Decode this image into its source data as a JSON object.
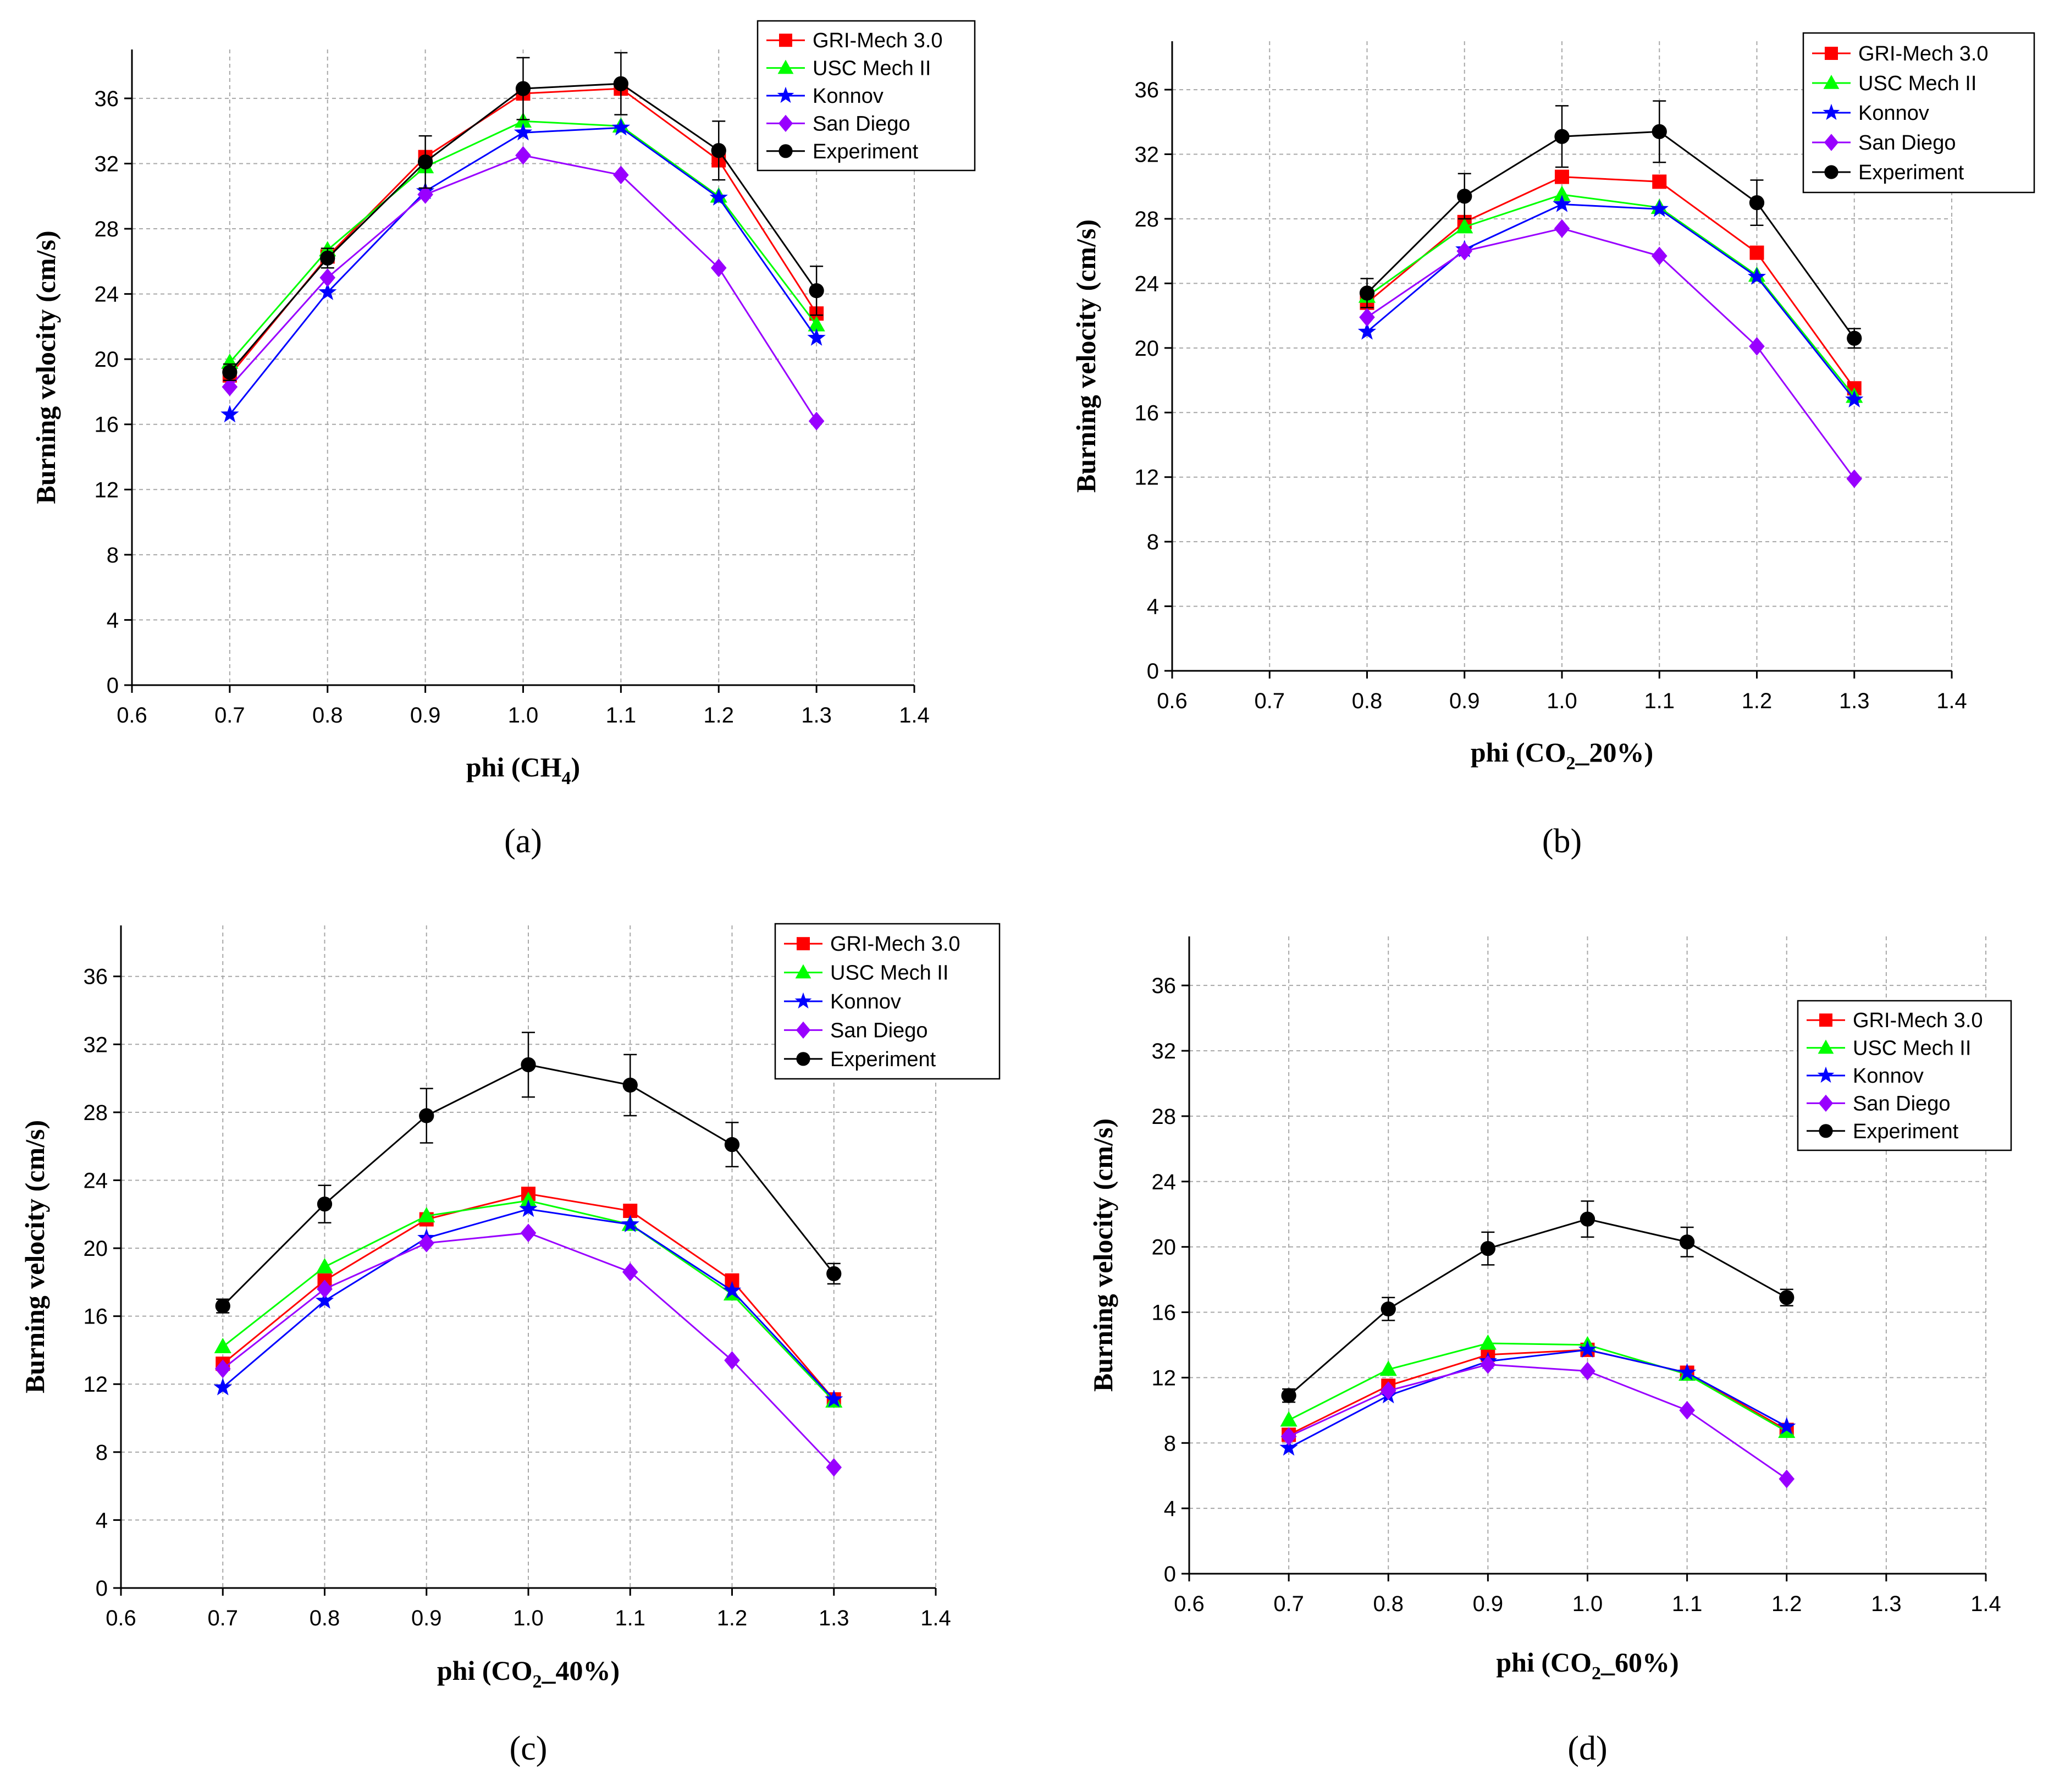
{
  "chart_data": [
    {
      "type": "line",
      "panel_label": "(a)",
      "xlabel_main": "phi (CH",
      "xlabel_sub": "4",
      "xlabel_end": ")",
      "ylabel": "Burning velocity (cm/s)",
      "xlim": [
        0.6,
        1.4
      ],
      "ylim": [
        0,
        39
      ],
      "xticks": [
        "0.6",
        "0.7",
        "0.8",
        "0.9",
        "1.0",
        "1.1",
        "1.2",
        "1.3",
        "1.4"
      ],
      "yticks": [
        "0",
        "4",
        "8",
        "12",
        "16",
        "20",
        "24",
        "28",
        "32",
        "36"
      ],
      "x": [
        0.7,
        0.8,
        0.9,
        1.0,
        1.1,
        1.2,
        1.3
      ],
      "legend_position": "top-right",
      "series": [
        {
          "name": "GRI-Mech 3.0",
          "color": "#ff0000",
          "marker": "square",
          "values": [
            19.0,
            26.3,
            32.4,
            36.3,
            36.6,
            32.2,
            22.8
          ]
        },
        {
          "name": "USC Mech II",
          "color": "#00ff00",
          "marker": "triangle",
          "values": [
            19.8,
            26.7,
            31.8,
            34.6,
            34.3,
            30.0,
            22.1
          ]
        },
        {
          "name": "Konnov",
          "color": "#0000ff",
          "marker": "star",
          "values": [
            16.6,
            24.1,
            30.3,
            33.9,
            34.2,
            29.9,
            21.3
          ]
        },
        {
          "name": "San Diego",
          "color": "#9900ff",
          "marker": "diamond",
          "values": [
            18.3,
            25.0,
            30.1,
            32.5,
            31.3,
            25.6,
            16.2
          ]
        },
        {
          "name": "Experiment",
          "color": "#000000",
          "marker": "circle",
          "values": [
            19.2,
            26.2,
            32.1,
            36.6,
            36.9,
            32.8,
            24.2
          ],
          "errors": [
            0.5,
            0.6,
            1.6,
            1.9,
            1.9,
            1.8,
            1.5
          ]
        }
      ]
    },
    {
      "type": "line",
      "panel_label": "(b)",
      "xlabel_main": "phi (CO",
      "xlabel_sub": "2",
      "xlabel_end": "_20%)",
      "ylabel": "Burning velocity (cm/s)",
      "xlim": [
        0.6,
        1.4
      ],
      "ylim": [
        0,
        39
      ],
      "xticks": [
        "0.6",
        "0.7",
        "0.8",
        "0.9",
        "1.0",
        "1.1",
        "1.2",
        "1.3",
        "1.4"
      ],
      "yticks": [
        "0",
        "4",
        "8",
        "12",
        "16",
        "20",
        "24",
        "28",
        "32",
        "36"
      ],
      "x": [
        0.8,
        0.9,
        1.0,
        1.1,
        1.2,
        1.3
      ],
      "legend_position": "top-right",
      "series": [
        {
          "name": "GRI-Mech 3.0",
          "color": "#ff0000",
          "marker": "square",
          "values": [
            22.8,
            27.8,
            30.6,
            30.3,
            25.9,
            17.5
          ]
        },
        {
          "name": "USC Mech II",
          "color": "#00ff00",
          "marker": "triangle",
          "values": [
            23.2,
            27.5,
            29.5,
            28.7,
            24.5,
            17.0
          ]
        },
        {
          "name": "Konnov",
          "color": "#0000ff",
          "marker": "star",
          "values": [
            21.0,
            26.1,
            28.9,
            28.6,
            24.4,
            16.8
          ]
        },
        {
          "name": "San Diego",
          "color": "#9900ff",
          "marker": "diamond",
          "values": [
            21.9,
            26.0,
            27.4,
            25.7,
            20.1,
            11.9
          ]
        },
        {
          "name": "Experiment",
          "color": "#000000",
          "marker": "circle",
          "values": [
            23.4,
            29.4,
            33.1,
            33.4,
            29.0,
            20.6
          ],
          "errors": [
            0.9,
            1.4,
            1.9,
            1.9,
            1.4,
            0.6
          ]
        }
      ]
    },
    {
      "type": "line",
      "panel_label": "(c)",
      "xlabel_main": "phi (CO",
      "xlabel_sub": "2",
      "xlabel_end": "_40%)",
      "ylabel": "Burning velocity (cm/s)",
      "xlim": [
        0.6,
        1.4
      ],
      "ylim": [
        0,
        39
      ],
      "xticks": [
        "0.6",
        "0.7",
        "0.8",
        "0.9",
        "1.0",
        "1.1",
        "1.2",
        "1.3",
        "1.4"
      ],
      "yticks": [
        "0",
        "4",
        "8",
        "12",
        "16",
        "20",
        "24",
        "28",
        "32",
        "36"
      ],
      "x": [
        0.7,
        0.8,
        0.9,
        1.0,
        1.1,
        1.2,
        1.3
      ],
      "legend_position": "top-right",
      "series": [
        {
          "name": "GRI-Mech 3.0",
          "color": "#ff0000",
          "marker": "square",
          "values": [
            13.2,
            18.1,
            21.7,
            23.2,
            22.2,
            18.1,
            11.1
          ]
        },
        {
          "name": "USC Mech II",
          "color": "#00ff00",
          "marker": "triangle",
          "values": [
            14.2,
            18.9,
            21.9,
            22.8,
            21.4,
            17.3,
            11.0
          ]
        },
        {
          "name": "Konnov",
          "color": "#0000ff",
          "marker": "star",
          "values": [
            11.8,
            16.9,
            20.6,
            22.3,
            21.4,
            17.5,
            11.1
          ]
        },
        {
          "name": "San Diego",
          "color": "#9900ff",
          "marker": "diamond",
          "values": [
            12.9,
            17.6,
            20.3,
            20.9,
            18.6,
            13.4,
            7.1
          ]
        },
        {
          "name": "Experiment",
          "color": "#000000",
          "marker": "circle",
          "values": [
            16.6,
            22.6,
            27.8,
            30.8,
            29.6,
            26.1,
            18.5
          ],
          "errors": [
            0.4,
            1.1,
            1.6,
            1.9,
            1.8,
            1.3,
            0.6
          ]
        }
      ]
    },
    {
      "type": "line",
      "panel_label": "(d)",
      "xlabel_main": "phi (CO",
      "xlabel_sub": "2",
      "xlabel_end": "_60%)",
      "ylabel": "Burning velocity (cm/s)",
      "xlim": [
        0.6,
        1.4
      ],
      "ylim": [
        0,
        39
      ],
      "xticks": [
        "0.6",
        "0.7",
        "0.8",
        "0.9",
        "1.0",
        "1.1",
        "1.2",
        "1.3",
        "1.4"
      ],
      "yticks": [
        "0",
        "4",
        "8",
        "12",
        "16",
        "20",
        "24",
        "28",
        "32",
        "36"
      ],
      "x": [
        0.7,
        0.8,
        0.9,
        1.0,
        1.1,
        1.2
      ],
      "legend_position": "right",
      "series": [
        {
          "name": "GRI-Mech 3.0",
          "color": "#ff0000",
          "marker": "square",
          "values": [
            8.5,
            11.5,
            13.4,
            13.7,
            12.3,
            8.8
          ]
        },
        {
          "name": "USC Mech II",
          "color": "#00ff00",
          "marker": "triangle",
          "values": [
            9.4,
            12.5,
            14.1,
            14.0,
            12.2,
            8.7
          ]
        },
        {
          "name": "Konnov",
          "color": "#0000ff",
          "marker": "star",
          "values": [
            7.7,
            10.9,
            13.0,
            13.7,
            12.3,
            9.0
          ]
        },
        {
          "name": "San Diego",
          "color": "#9900ff",
          "marker": "diamond",
          "values": [
            8.4,
            11.2,
            12.8,
            12.4,
            10.0,
            5.8
          ]
        },
        {
          "name": "Experiment",
          "color": "#000000",
          "marker": "circle",
          "values": [
            10.9,
            16.2,
            19.9,
            21.7,
            20.3,
            16.9
          ],
          "errors": [
            0.4,
            0.7,
            1.0,
            1.1,
            0.9,
            0.5
          ]
        }
      ]
    }
  ]
}
